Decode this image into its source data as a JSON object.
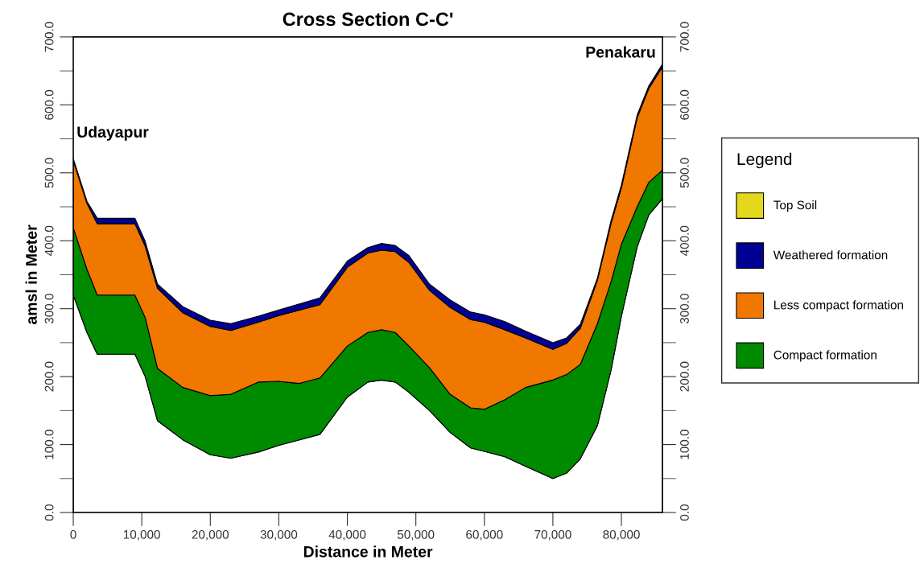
{
  "chart_data": {
    "type": "area",
    "stacked": true,
    "title": "Cross Section C-C'",
    "xlabel": "Distance in Meter",
    "ylabel": "amsl in Meter",
    "legend_title": "Legend",
    "legend": "right",
    "x": [
      0,
      2000,
      3500,
      9000,
      10500,
      12300,
      16000,
      20000,
      23000,
      27000,
      30000,
      33000,
      36000,
      40000,
      43000,
      45000,
      47000,
      49000,
      52000,
      55000,
      58000,
      60000,
      63000,
      66000,
      70000,
      72000,
      74000,
      76500,
      78500,
      80000,
      82300,
      84000,
      86000
    ],
    "series": [
      {
        "color": "#ffffff",
        "values": [
          320,
          265,
          233,
          233,
          200,
          135,
          107,
          85,
          80,
          89,
          99,
          107,
          115,
          170,
          192,
          195,
          192,
          177,
          150,
          118,
          95,
          90,
          82,
          68,
          50,
          58,
          79,
          128,
          210,
          289,
          391,
          438,
          462
        ]
      },
      {
        "name": "Compact formation",
        "color": "#008a00",
        "values": [
          99,
          93,
          87,
          87,
          87,
          77,
          77,
          87,
          94,
          103,
          94,
          83,
          83,
          75,
          73,
          74,
          73,
          68,
          63,
          56,
          59,
          62,
          84,
          116,
          145,
          145,
          139,
          150,
          130,
          106,
          59,
          48,
          42
        ]
      },
      {
        "name": "Less compact formation",
        "color": "#f07800",
        "values": [
          99,
          97,
          105,
          105,
          105,
          118,
          110,
          102,
          94,
          88,
          97,
          108,
          108,
          116,
          117,
          117,
          119,
          123,
          114,
          128,
          130,
          128,
          103,
          73,
          45,
          46,
          53,
          64,
          86,
          83,
          131,
          138,
          152
        ]
      },
      {
        "name": "Weathered formation",
        "color": "#000094",
        "values": [
          3,
          3,
          8,
          8,
          7,
          6,
          9,
          9,
          10,
          9,
          8,
          9,
          10,
          9,
          8,
          10,
          9,
          10,
          9,
          11,
          11,
          11,
          12,
          10,
          10,
          8,
          6,
          3,
          4,
          4,
          4,
          4,
          4
        ]
      },
      {
        "name": "Top Soil",
        "color": "#e3d81c",
        "values": [
          null,
          null,
          null,
          null,
          null,
          null,
          null,
          null,
          null,
          null,
          null,
          null,
          null,
          null,
          null,
          null,
          null,
          null,
          null,
          null,
          null,
          null,
          null,
          null,
          null,
          null,
          null,
          null,
          null,
          null,
          null,
          null,
          null
        ]
      }
    ],
    "xlim": [
      0,
      86000
    ],
    "ylim": [
      0,
      700
    ],
    "y2lim": [
      0,
      700
    ],
    "xticks": [
      0,
      {
        "value": 10000,
        "label": "10,000"
      },
      {
        "value": 20000,
        "label": "20,000"
      },
      {
        "value": 30000,
        "label": "30,000"
      },
      {
        "value": 40000,
        "label": "40,000"
      },
      {
        "value": 50000,
        "label": "50,000"
      },
      {
        "value": 60000,
        "label": "60,000"
      },
      {
        "value": 70000,
        "label": "70,000"
      },
      {
        "value": 80000,
        "label": "80,000"
      }
    ],
    "yticks": [
      {
        "value": 0,
        "label": "0.0"
      },
      {
        "value": 100,
        "label": "100.0"
      },
      {
        "value": 200,
        "label": "200.0"
      },
      {
        "value": 300,
        "label": "300.0"
      },
      {
        "value": 400,
        "label": "400.0"
      },
      {
        "value": 500,
        "label": "500.0"
      },
      {
        "value": 600,
        "label": "600.0"
      },
      {
        "value": 700,
        "label": "700.0"
      }
    ],
    "y2ticks": [
      {
        "value": 0,
        "label": "0.0"
      },
      {
        "value": 100,
        "label": "100.0"
      },
      {
        "value": 200,
        "label": "200.0"
      },
      {
        "value": 300,
        "label": "300.0"
      },
      {
        "value": 400,
        "label": "400.0"
      },
      {
        "value": 500,
        "label": "500.0"
      },
      {
        "value": 600,
        "label": "600.0"
      },
      {
        "value": 700,
        "label": "700.0"
      }
    ],
    "annotations": [
      {
        "text": "Udayapur",
        "x": 0,
        "y": 521
      },
      {
        "text": "Penakaru",
        "x": 86000,
        "y": 660
      }
    ],
    "grid": false
  }
}
